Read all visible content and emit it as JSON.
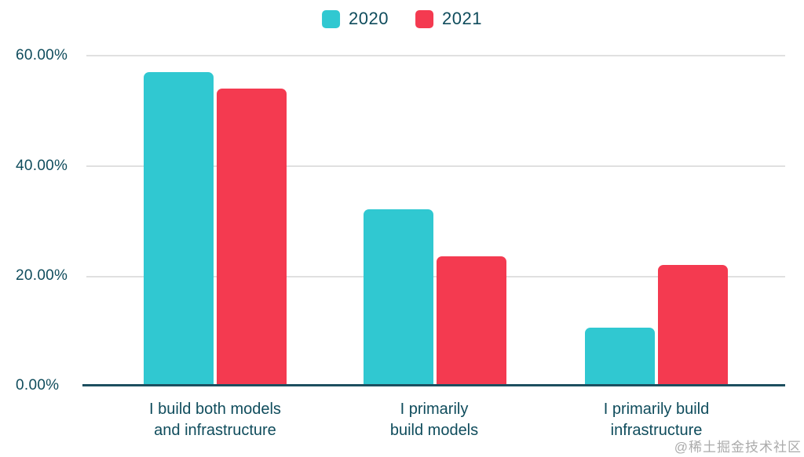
{
  "chart_data": {
    "type": "bar",
    "title": "",
    "xlabel": "",
    "ylabel": "",
    "categories": [
      "I build both models and infrastructure",
      "I primarily build models",
      "I primarily build infrastructure"
    ],
    "categories_lines": [
      [
        "I build both models",
        "and infrastructure"
      ],
      [
        "I primarily",
        "build models"
      ],
      [
        "I primarily build",
        "infrastructure"
      ]
    ],
    "series": [
      {
        "name": "2020",
        "color": "#30c8d1",
        "values": [
          57,
          32,
          10.5
        ]
      },
      {
        "name": "2021",
        "color": "#f43a50",
        "values": [
          54,
          23.5,
          22
        ]
      }
    ],
    "ylim": [
      0,
      60
    ],
    "y_ticks": [
      "60.00%",
      "40.00%",
      "20.00%",
      "0.00%"
    ],
    "grid": true,
    "legend_position": "top-center"
  },
  "colors": {
    "series_2020": "#30c8d1",
    "series_2021": "#f43a50",
    "axis_text": "#0f4c5c",
    "gridline": "#e0e0e0",
    "baseline": "#1d4f5f",
    "background": "#ffffff",
    "watermark_text": "#ababab"
  },
  "watermark": "@稀土掘金技术社区"
}
